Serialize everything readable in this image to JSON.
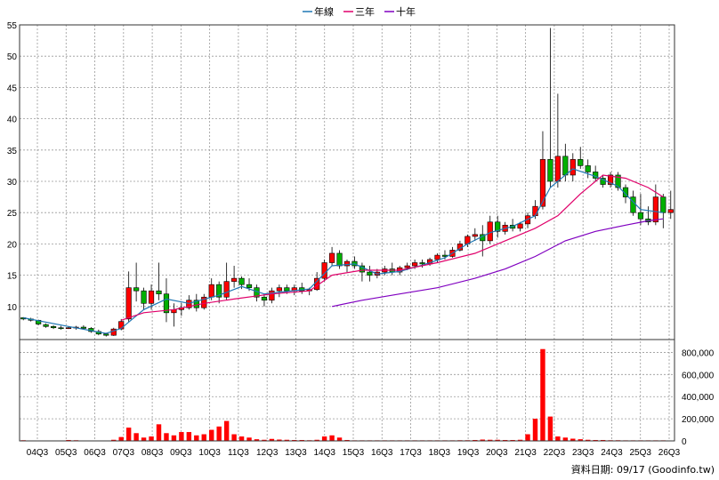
{
  "chart_data": {
    "type": "candlestick",
    "title": "",
    "source_note": "資料日期: 09/17  (Goodinfo.tw)",
    "legend": [
      {
        "name": "年線",
        "color": "#1f77b4"
      },
      {
        "name": "三年",
        "color": "#e0006a"
      },
      {
        "name": "十年",
        "color": "#8000c0"
      }
    ],
    "price_axis": {
      "ylim": [
        5,
        55
      ],
      "ticks": [
        10,
        15,
        20,
        25,
        30,
        35,
        40,
        45,
        50,
        55
      ]
    },
    "volume_axis": {
      "ylim": [
        0,
        900000
      ],
      "ticks": [
        0,
        200000,
        400000,
        600000,
        800000
      ],
      "tick_labels": [
        "0",
        "200,000",
        "400,000",
        "600,000",
        "800,000"
      ]
    },
    "x_labels": [
      "04Q3",
      "05Q3",
      "06Q3",
      "07Q3",
      "08Q3",
      "09Q3",
      "10Q3",
      "11Q3",
      "12Q3",
      "13Q3",
      "14Q3",
      "15Q3",
      "16Q3",
      "17Q3",
      "18Q3",
      "19Q3",
      "20Q3",
      "21Q3",
      "22Q3",
      "23Q3",
      "24Q3",
      "25Q3",
      "26Q3"
    ],
    "colors": {
      "up": "#ff0000",
      "down": "#00b000",
      "volume": "#ff0000",
      "grid": "#999999"
    },
    "series": [
      {
        "name": "年線",
        "values": []
      },
      {
        "name": "三年",
        "values": []
      },
      {
        "name": "十年",
        "values": []
      }
    ],
    "candles": [
      [
        8.2,
        8.3,
        7.8,
        8.0
      ],
      [
        8.0,
        8.2,
        7.6,
        7.8
      ],
      [
        7.8,
        7.9,
        7.0,
        7.2
      ],
      [
        7.1,
        7.3,
        6.6,
        6.8
      ],
      [
        6.8,
        7.0,
        6.4,
        6.6
      ],
      [
        6.6,
        6.9,
        6.3,
        6.5
      ],
      [
        6.6,
        6.8,
        6.4,
        6.6
      ],
      [
        6.6,
        6.9,
        6.3,
        6.7
      ],
      [
        6.7,
        7.0,
        6.3,
        6.5
      ],
      [
        6.5,
        6.7,
        5.8,
        6.0
      ],
      [
        6.0,
        6.3,
        5.4,
        5.6
      ],
      [
        5.6,
        5.8,
        5.2,
        5.4
      ],
      [
        5.4,
        6.6,
        5.3,
        6.4
      ],
      [
        6.4,
        8.0,
        6.2,
        7.6
      ],
      [
        8.0,
        15.6,
        7.5,
        13.0
      ],
      [
        13.0,
        17.0,
        10.8,
        12.5
      ],
      [
        12.5,
        13.0,
        9.5,
        10.5
      ],
      [
        10.5,
        13.5,
        9.5,
        12.5
      ],
      [
        12.5,
        17.0,
        11.0,
        12.0
      ],
      [
        12.0,
        14.5,
        7.5,
        9.0
      ],
      [
        9.0,
        10.5,
        6.8,
        9.5
      ],
      [
        9.5,
        10.5,
        8.5,
        9.8
      ],
      [
        9.8,
        11.8,
        9.5,
        11.0
      ],
      [
        11.0,
        12.0,
        9.2,
        9.8
      ],
      [
        9.8,
        12.0,
        9.5,
        11.5
      ],
      [
        11.5,
        14.5,
        11.0,
        13.5
      ],
      [
        13.5,
        14.0,
        10.5,
        11.5
      ],
      [
        11.5,
        17.0,
        11.0,
        14.0
      ],
      [
        14.0,
        16.5,
        13.0,
        14.5
      ],
      [
        14.5,
        14.8,
        12.8,
        13.5
      ],
      [
        13.5,
        14.5,
        12.5,
        13.0
      ],
      [
        13.0,
        13.5,
        10.8,
        11.5
      ],
      [
        11.5,
        12.0,
        10.0,
        11.0
      ],
      [
        11.0,
        13.0,
        10.5,
        12.5
      ],
      [
        12.5,
        13.5,
        11.5,
        13.0
      ],
      [
        13.0,
        13.5,
        12.0,
        12.5
      ],
      [
        12.5,
        13.5,
        11.8,
        13.0
      ],
      [
        13.0,
        13.8,
        12.0,
        12.5
      ],
      [
        12.5,
        13.0,
        11.8,
        12.7
      ],
      [
        12.7,
        15.5,
        12.5,
        14.5
      ],
      [
        14.5,
        17.5,
        14.0,
        17.0
      ],
      [
        17.0,
        19.5,
        16.5,
        18.5
      ],
      [
        18.5,
        19.0,
        16.0,
        16.5
      ],
      [
        16.5,
        17.5,
        15.5,
        17.2
      ],
      [
        17.2,
        18.0,
        16.0,
        16.5
      ],
      [
        16.5,
        17.0,
        14.0,
        15.5
      ],
      [
        15.5,
        16.5,
        14.0,
        15.0
      ],
      [
        15.0,
        16.0,
        14.5,
        15.5
      ],
      [
        15.5,
        16.5,
        15.0,
        16.0
      ],
      [
        16.0,
        17.0,
        15.0,
        15.5
      ],
      [
        15.5,
        16.5,
        15.0,
        16.2
      ],
      [
        16.2,
        17.0,
        15.8,
        16.5
      ],
      [
        16.5,
        17.5,
        16.0,
        17.0
      ],
      [
        17.0,
        17.5,
        16.2,
        16.8
      ],
      [
        16.8,
        17.8,
        16.5,
        17.5
      ],
      [
        17.5,
        18.5,
        17.0,
        18.2
      ],
      [
        18.2,
        19.0,
        17.5,
        18.0
      ],
      [
        18.0,
        19.5,
        17.8,
        19.0
      ],
      [
        19.0,
        20.5,
        18.8,
        20.0
      ],
      [
        20.0,
        21.5,
        19.5,
        21.2
      ],
      [
        21.2,
        22.5,
        20.5,
        21.5
      ],
      [
        21.5,
        23.0,
        18.0,
        20.5
      ],
      [
        20.5,
        24.5,
        20.0,
        23.5
      ],
      [
        23.5,
        24.5,
        21.0,
        22.0
      ],
      [
        22.0,
        23.5,
        21.5,
        23.0
      ],
      [
        23.0,
        24.0,
        22.0,
        22.5
      ],
      [
        22.5,
        23.5,
        22.0,
        23.2
      ],
      [
        23.2,
        25.0,
        22.5,
        24.5
      ],
      [
        24.5,
        27.0,
        24.0,
        26.0
      ],
      [
        26.0,
        38.0,
        25.5,
        33.5
      ],
      [
        33.5,
        54.5,
        29.0,
        30.0
      ],
      [
        30.0,
        44.0,
        29.0,
        34.0
      ],
      [
        34.0,
        36.0,
        30.0,
        31.0
      ],
      [
        31.0,
        34.5,
        30.0,
        33.5
      ],
      [
        33.5,
        35.5,
        32.0,
        32.5
      ],
      [
        32.5,
        33.5,
        30.5,
        31.5
      ],
      [
        31.5,
        32.5,
        30.0,
        30.5
      ],
      [
        30.5,
        31.0,
        29.0,
        29.5
      ],
      [
        29.5,
        31.5,
        29.0,
        31.0
      ],
      [
        31.0,
        31.5,
        28.5,
        29.0
      ],
      [
        29.0,
        29.5,
        26.5,
        27.5
      ],
      [
        27.5,
        28.5,
        24.5,
        25.0
      ],
      [
        25.0,
        28.0,
        23.0,
        24.0
      ],
      [
        24.0,
        26.0,
        23.0,
        23.5
      ],
      [
        23.5,
        29.5,
        23.0,
        27.5
      ],
      [
        27.5,
        28.0,
        22.5,
        25.0
      ],
      [
        25.0,
        28.5,
        24.0,
        25.5
      ]
    ],
    "ma_year": [
      [
        0,
        8.2
      ],
      [
        6,
        6.8
      ],
      [
        11,
        5.7
      ],
      [
        13,
        6.5
      ],
      [
        16,
        9.5
      ],
      [
        19,
        11.2
      ],
      [
        22,
        10.5
      ],
      [
        26,
        11.8
      ],
      [
        29,
        13.2
      ],
      [
        32,
        12.0
      ],
      [
        35,
        12.4
      ],
      [
        38,
        12.8
      ],
      [
        41,
        16.5
      ],
      [
        44,
        16.8
      ],
      [
        47,
        15.2
      ],
      [
        50,
        15.6
      ],
      [
        53,
        16.6
      ],
      [
        56,
        17.8
      ],
      [
        59,
        20.0
      ],
      [
        62,
        21.8
      ],
      [
        65,
        22.8
      ],
      [
        68,
        24.5
      ],
      [
        70,
        29.0
      ],
      [
        73,
        32.0
      ],
      [
        76,
        30.8
      ],
      [
        79,
        29.2
      ],
      [
        82,
        25.5
      ],
      [
        85,
        25.0
      ]
    ],
    "ma_three": [
      [
        13,
        7.8
      ],
      [
        16,
        9.0
      ],
      [
        20,
        9.5
      ],
      [
        24,
        10.5
      ],
      [
        28,
        11.2
      ],
      [
        33,
        12.0
      ],
      [
        38,
        12.5
      ],
      [
        41,
        15.0
      ],
      [
        45,
        15.8
      ],
      [
        50,
        15.8
      ],
      [
        55,
        17.0
      ],
      [
        60,
        18.5
      ],
      [
        64,
        20.5
      ],
      [
        68,
        22.5
      ],
      [
        71,
        24.5
      ],
      [
        74,
        28.0
      ],
      [
        77,
        31.0
      ],
      [
        80,
        30.5
      ],
      [
        83,
        29.0
      ],
      [
        85,
        27.5
      ]
    ],
    "ma_ten": [
      [
        41,
        10.0
      ],
      [
        45,
        11.0
      ],
      [
        50,
        12.0
      ],
      [
        55,
        13.0
      ],
      [
        60,
        14.5
      ],
      [
        64,
        16.0
      ],
      [
        68,
        18.0
      ],
      [
        72,
        20.5
      ],
      [
        76,
        22.0
      ],
      [
        80,
        23.0
      ],
      [
        83,
        23.7
      ],
      [
        85,
        24.0
      ]
    ],
    "volumes": [
      6000,
      4000,
      3000,
      2000,
      2000,
      2000,
      8000,
      6000,
      4000,
      4000,
      3000,
      2000,
      10000,
      35000,
      120000,
      70000,
      30000,
      40000,
      150000,
      70000,
      50000,
      80000,
      80000,
      50000,
      60000,
      100000,
      130000,
      180000,
      60000,
      40000,
      30000,
      15000,
      10000,
      18000,
      12000,
      10000,
      8000,
      8000,
      6000,
      10000,
      40000,
      50000,
      30000,
      8000,
      5000,
      5000,
      5000,
      5000,
      5000,
      5000,
      5000,
      5000,
      5000,
      5000,
      5000,
      5000,
      5000,
      5000,
      6000,
      6000,
      8000,
      12000,
      10000,
      10000,
      8000,
      8000,
      10000,
      60000,
      200000,
      830000,
      220000,
      40000,
      30000,
      20000,
      15000,
      10000,
      8000,
      8000,
      6000,
      6000,
      5000,
      5000,
      5000,
      5000,
      5000,
      5000
    ]
  }
}
